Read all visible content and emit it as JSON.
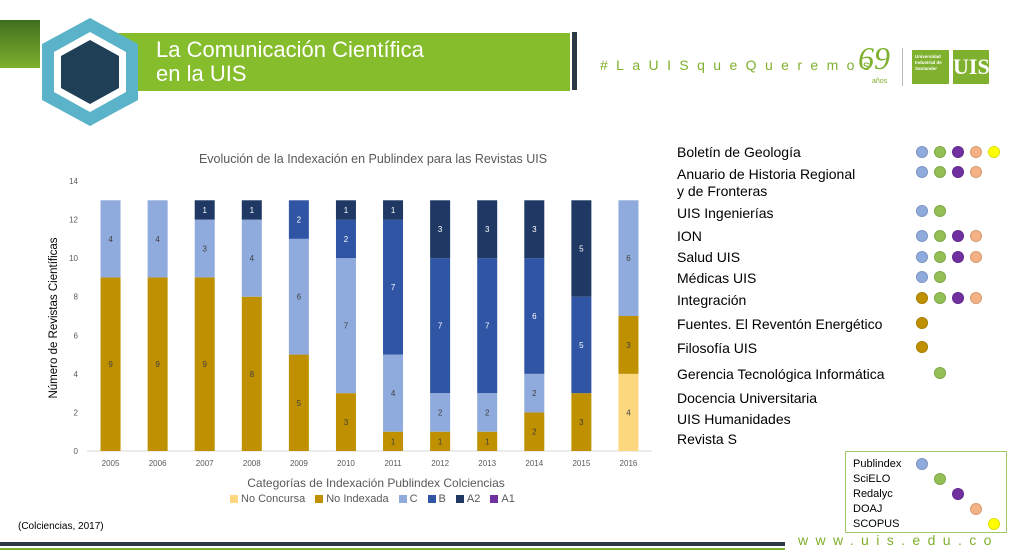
{
  "header": {
    "title_line1": "La Comunicación Científica",
    "title_line2": "en la UIS",
    "hashtag": "#LaUISqueQueremos",
    "logo_number": "69",
    "logo_years": "años",
    "logo_text": "Universidad Industrial de Santander",
    "logo_mark": "UIS"
  },
  "chart_data": {
    "type": "bar",
    "stacked": true,
    "title": "Evolución de la Indexación en Publindex para las Revistas UIS",
    "xlabel": "Categorías de Indexación  Publindex  Colciencias",
    "ylabel": "Número de Revistas Científicas",
    "ylim": [
      0,
      14
    ],
    "yticks": [
      0,
      2,
      4,
      6,
      8,
      10,
      12,
      14
    ],
    "grid": false,
    "legend_position": "bottom",
    "categories": [
      "2005",
      "2006",
      "2007",
      "2008",
      "2009",
      "2010",
      "2011",
      "2012",
      "2013",
      "2014",
      "2015",
      "2016"
    ],
    "series": [
      {
        "name": "No Concursa",
        "color": "#fcd77e",
        "values": [
          0,
          0,
          0,
          0,
          0,
          0,
          0,
          0,
          0,
          0,
          0,
          4
        ]
      },
      {
        "name": "No Indexada",
        "color": "#bf9000",
        "values": [
          9,
          9,
          9,
          8,
          5,
          3,
          1,
          1,
          1,
          2,
          3,
          3
        ]
      },
      {
        "name": "C",
        "color": "#8faadc",
        "values": [
          4,
          4,
          3,
          4,
          6,
          7,
          4,
          2,
          2,
          2,
          0,
          6
        ]
      },
      {
        "name": "B",
        "color": "#2f55a4",
        "values": [
          0,
          0,
          0,
          0,
          2,
          2,
          7,
          7,
          7,
          6,
          5,
          0
        ]
      },
      {
        "name": "A2",
        "color": "#1f3864",
        "values": [
          0,
          0,
          1,
          1,
          0,
          1,
          1,
          3,
          3,
          3,
          5,
          0
        ]
      },
      {
        "name": "A1",
        "color": "#7030a0",
        "values": [
          0,
          0,
          0,
          0,
          0,
          0,
          0,
          0,
          0,
          0,
          0,
          0
        ]
      }
    ]
  },
  "journals": [
    {
      "name": "Boletín de Geología",
      "dots": [
        "#8faadc",
        "#92c054",
        "#7030a0",
        "#f4b183",
        "#ffff00"
      ]
    },
    {
      "name": "Anuario de Historia Regional",
      "name2": " y de Fronteras",
      "dots": [
        "#8faadc",
        "#92c054",
        "#7030a0",
        "#f4b183"
      ]
    },
    {
      "name": "UIS Ingenierías",
      "dots": [
        "#8faadc",
        "#92c054"
      ]
    },
    {
      "name": "ION",
      "dots": [
        "#8faadc",
        "#92c054",
        "#7030a0",
        "#f4b183"
      ]
    },
    {
      "name": "Salud UIS",
      "dots": [
        "#8faadc",
        "#92c054",
        "#7030a0",
        "#f4b183"
      ]
    },
    {
      "name": "Médicas UIS",
      "dots": [
        "#8faadc",
        "#92c054"
      ]
    },
    {
      "name": "Integración",
      "dots": [
        "#bf9000",
        "#92c054",
        "#7030a0",
        "#f4b183"
      ]
    },
    {
      "name": "Fuentes. El Reventón Energético",
      "dots": [
        "#bf9000"
      ]
    },
    {
      "name": "Filosofía UIS",
      "dots": [
        "#bf9000"
      ]
    },
    {
      "name": "Gerencia Tecnológica Informática",
      "dots": [
        "#92c054"
      ]
    },
    {
      "name": "Docencia Universitaria",
      "dots": []
    },
    {
      "name": "UIS Humanidades",
      "dots": []
    },
    {
      "name": "Revista S",
      "dots": []
    }
  ],
  "index_legend": [
    {
      "name": "Publindex",
      "color": "#8faadc"
    },
    {
      "name": "SciELO",
      "color": "#92c054"
    },
    {
      "name": "Redalyc",
      "color": "#7030a0"
    },
    {
      "name": "DOAJ",
      "color": "#f4b183"
    },
    {
      "name": "SCOPUS",
      "color": "#ffff00"
    }
  ],
  "footer": {
    "source": "(Colciencias, 2017)",
    "url": "www.uis.edu.co"
  }
}
